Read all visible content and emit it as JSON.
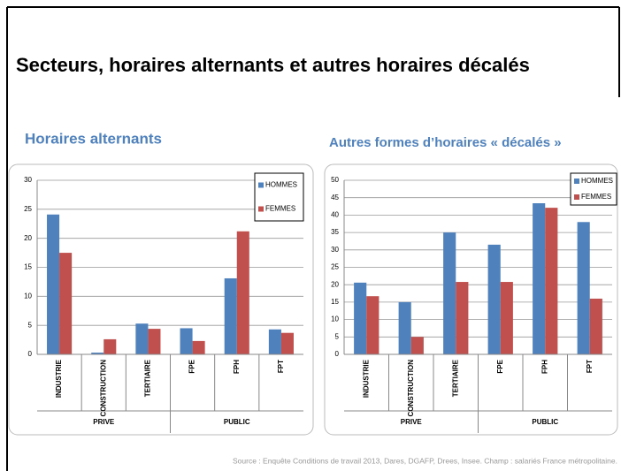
{
  "title": "Secteurs, horaires alternants et autres horaires décalés",
  "source": "Source : Enquête Conditions de travail 2013, Dares, DGAFP, Drees, Insee. Champ : salariés France métropolitaine.",
  "chart_data": [
    {
      "type": "bar",
      "title": "Horaires alternants",
      "groups": [
        {
          "name": "PRIVE",
          "categories": [
            "INDUSTRIE",
            "CONSTRUCTION",
            "TERTIAIRE"
          ]
        },
        {
          "name": "PUBLIC",
          "categories": [
            "FPE",
            "FPH",
            "FPT"
          ]
        }
      ],
      "series": [
        {
          "name": "HOMMES",
          "color": "#4f81bd",
          "values": [
            24.1,
            0.3,
            5.3,
            4.5,
            13.1,
            4.3
          ]
        },
        {
          "name": "FEMMES",
          "color": "#c0504d",
          "values": [
            17.5,
            2.6,
            4.4,
            2.3,
            21.2,
            3.7
          ]
        }
      ],
      "ylim": [
        0,
        30
      ],
      "yticks": [
        0,
        5,
        10,
        15,
        20,
        25,
        30
      ],
      "grid": true,
      "legend": "top-right"
    },
    {
      "type": "bar",
      "title": "Autres formes d’horaires « décalés »",
      "groups": [
        {
          "name": "PRIVE",
          "categories": [
            "INDUSTRIE",
            "CONSTRUCTION",
            "TERTIAIRE"
          ]
        },
        {
          "name": "PUBLIC",
          "categories": [
            "FPE",
            "FPH",
            "FPT"
          ]
        }
      ],
      "series": [
        {
          "name": "HOMMES",
          "color": "#4f81bd",
          "values": [
            20.6,
            15,
            35,
            31.5,
            43.4,
            38
          ]
        },
        {
          "name": "FEMMES",
          "color": "#c0504d",
          "values": [
            16.7,
            5,
            20.8,
            20.8,
            42.1,
            16
          ]
        }
      ],
      "ylim": [
        0,
        50
      ],
      "yticks": [
        0,
        5,
        10,
        15,
        20,
        25,
        30,
        35,
        40,
        45,
        50
      ],
      "grid": true,
      "legend": "top-right"
    }
  ]
}
